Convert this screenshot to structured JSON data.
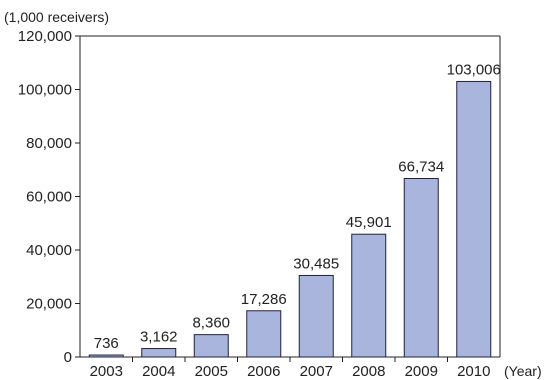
{
  "chart_data": {
    "type": "bar",
    "categories": [
      "2003",
      "2004",
      "2005",
      "2006",
      "2007",
      "2008",
      "2009",
      "2010"
    ],
    "values": [
      736,
      3162,
      8360,
      17286,
      30485,
      45901,
      66734,
      103006
    ],
    "value_labels": [
      "736",
      "3,162",
      "8,360",
      "17,286",
      "30,485",
      "45,901",
      "66,734",
      "103,006"
    ],
    "ylim": [
      0,
      120000
    ],
    "y_ticks": [
      0,
      20000,
      40000,
      60000,
      80000,
      100000,
      120000
    ],
    "y_tick_labels": [
      "0",
      "20,000",
      "40,000",
      "60,000",
      "80,000",
      "100,000",
      "120,000"
    ],
    "y_unit": "(1,000 receivers)",
    "x_unit": "(Year)",
    "bar_color": "#a9b5dc",
    "bar_stroke": "#1e2240",
    "grid": false,
    "legend": "none"
  }
}
